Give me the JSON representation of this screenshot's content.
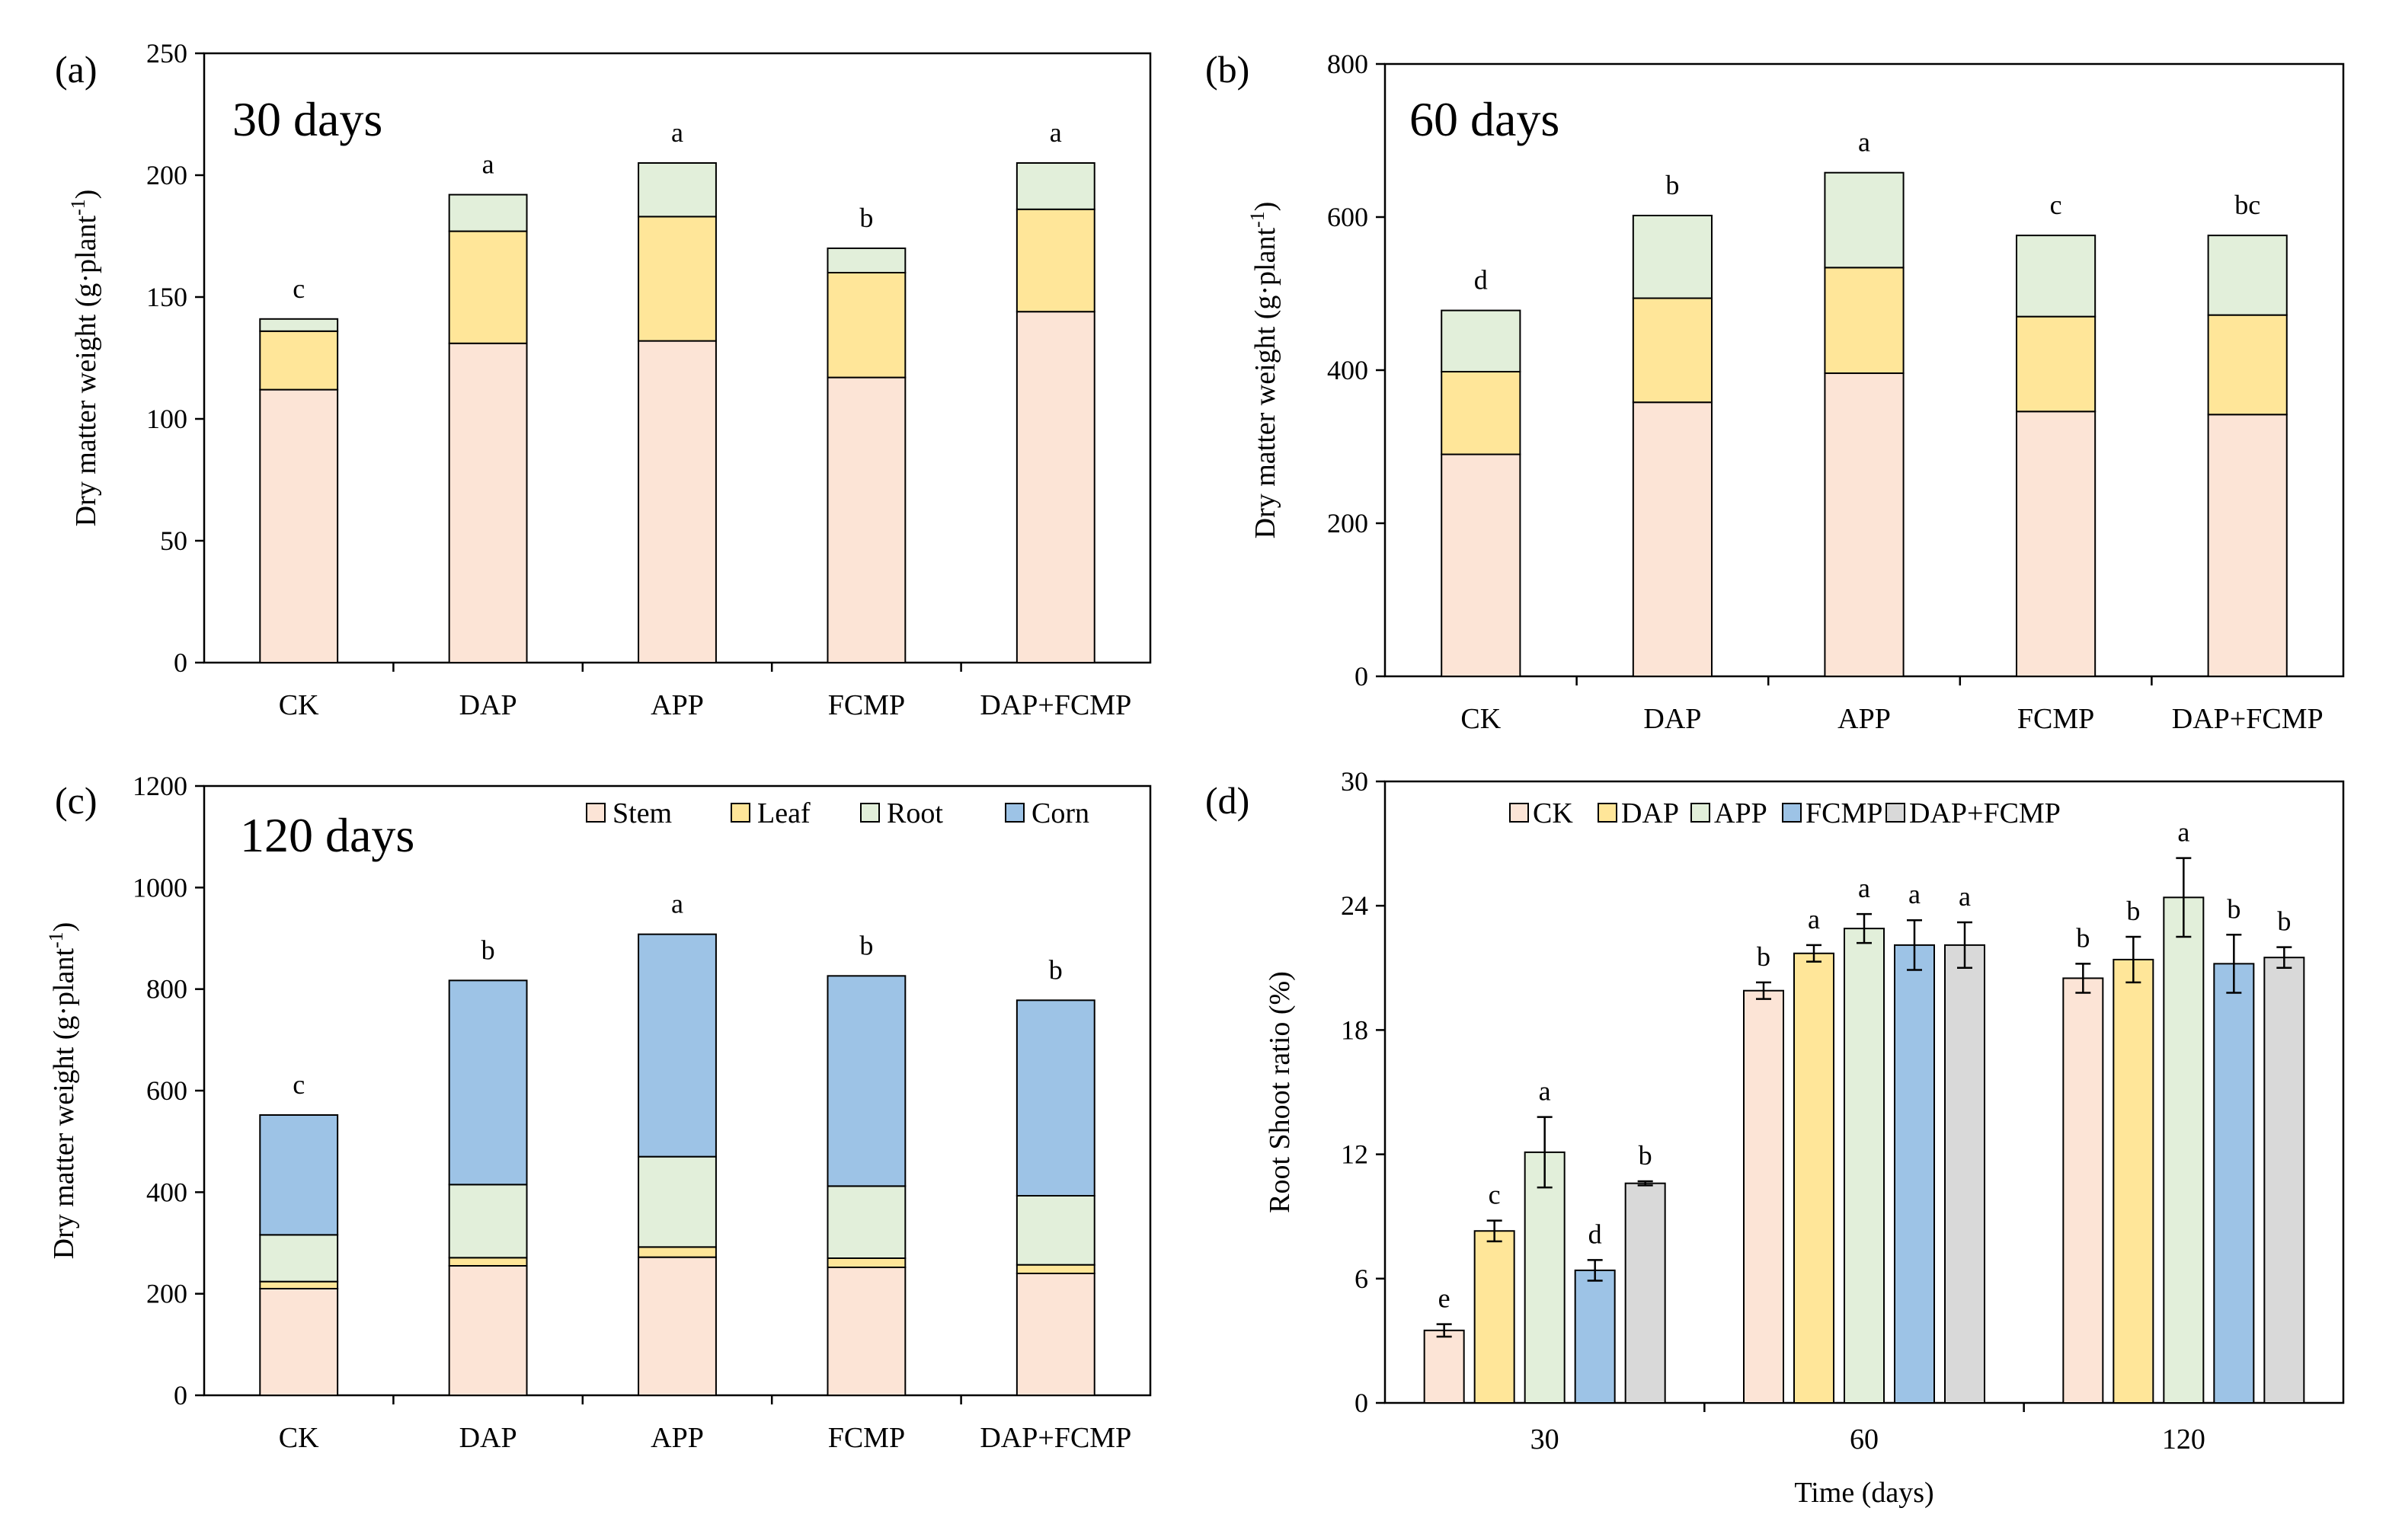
{
  "colors": {
    "stem": "#FCE4D6",
    "leaf": "#FFE699",
    "root": "#E2EFDA",
    "corn": "#9DC3E6",
    "ck": "#FCE4D6",
    "dap": "#FFE699",
    "app": "#E2EFDA",
    "fcmp": "#9DC3E6",
    "dapfcmp": "#D9D9D9"
  },
  "chart_data": [
    {
      "panel": "(a)",
      "type": "bar",
      "stacked": true,
      "title": "30 days",
      "ylabel": "Dry matter weight (g·plant",
      "ylabel_sup": "-1",
      "ylabel_close": ")",
      "ylim": [
        0,
        250
      ],
      "yticks": [
        0,
        50,
        100,
        150,
        200,
        250
      ],
      "categories": [
        "CK",
        "DAP",
        "APP",
        "FCMP",
        "DAP+FCMP"
      ],
      "series": [
        {
          "name": "Stem",
          "color_key": "stem",
          "values": [
            112,
            131,
            132,
            117,
            144
          ]
        },
        {
          "name": "Leaf",
          "color_key": "leaf",
          "values": [
            24,
            46,
            51,
            43,
            42
          ]
        },
        {
          "name": "Root",
          "color_key": "root",
          "values": [
            5,
            15,
            22,
            10,
            19
          ]
        }
      ],
      "letters": [
        "c",
        "a",
        "a",
        "b",
        "a"
      ]
    },
    {
      "panel": "(b)",
      "type": "bar",
      "stacked": true,
      "title": "60 days",
      "ylabel": "Dry matter weight (g·plant",
      "ylabel_sup": "-1",
      "ylabel_close": ")",
      "ylim": [
        0,
        800
      ],
      "yticks": [
        0,
        200,
        400,
        600,
        800
      ],
      "categories": [
        "CK",
        "DAP",
        "APP",
        "FCMP",
        "DAP+FCMP"
      ],
      "series": [
        {
          "name": "Stem",
          "color_key": "stem",
          "values": [
            290,
            358,
            396,
            346,
            342
          ]
        },
        {
          "name": "Leaf",
          "color_key": "leaf",
          "values": [
            108,
            136,
            138,
            124,
            130
          ]
        },
        {
          "name": "Root",
          "color_key": "root",
          "values": [
            80,
            108,
            124,
            106,
            104
          ]
        }
      ],
      "letters": [
        "d",
        "b",
        "a",
        "c",
        "bc"
      ]
    },
    {
      "panel": "(c)",
      "type": "bar",
      "stacked": true,
      "title": "120 days",
      "ylabel": "Dry matter weight (g·plant",
      "ylabel_sup": "-1",
      "ylabel_close": ")",
      "ylim": [
        0,
        1200
      ],
      "yticks": [
        0,
        200,
        400,
        600,
        800,
        1000,
        1200
      ],
      "categories": [
        "CK",
        "DAP",
        "APP",
        "FCMP",
        "DAP+FCMP"
      ],
      "series": [
        {
          "name": "Stem",
          "color_key": "stem",
          "values": [
            210,
            255,
            272,
            252,
            240
          ]
        },
        {
          "name": "Leaf",
          "color_key": "leaf",
          "values": [
            14,
            16,
            20,
            18,
            17
          ]
        },
        {
          "name": "Root",
          "color_key": "root",
          "values": [
            92,
            144,
            178,
            142,
            136
          ]
        },
        {
          "name": "Corn",
          "color_key": "corn",
          "values": [
            236,
            402,
            438,
            414,
            385
          ]
        }
      ],
      "letters": [
        "c",
        "b",
        "a",
        "b",
        "b"
      ],
      "legend": [
        "Stem",
        "Leaf",
        "Root",
        "Corn"
      ]
    },
    {
      "panel": "(d)",
      "type": "bar",
      "stacked": false,
      "xlabel": "Time (days)",
      "ylabel": "Root Shoot ratio (%)",
      "ylim": [
        0,
        30
      ],
      "yticks": [
        0,
        6,
        12,
        18,
        24,
        30
      ],
      "categories": [
        "30",
        "60",
        "120"
      ],
      "series": [
        {
          "name": "CK",
          "color_key": "ck",
          "values": [
            3.5,
            19.9,
            20.5
          ],
          "errors": [
            0.3,
            0.4,
            0.7
          ],
          "letters": [
            "e",
            "b",
            "b"
          ]
        },
        {
          "name": "DAP",
          "color_key": "dap",
          "values": [
            8.3,
            21.7,
            21.4
          ],
          "errors": [
            0.5,
            0.4,
            1.1
          ],
          "letters": [
            "c",
            "a",
            "b"
          ]
        },
        {
          "name": "APP",
          "color_key": "app",
          "values": [
            12.1,
            22.9,
            24.4
          ],
          "errors": [
            1.7,
            0.7,
            1.9
          ],
          "letters": [
            "a",
            "a",
            "a"
          ]
        },
        {
          "name": "FCMP",
          "color_key": "fcmp",
          "values": [
            6.4,
            22.1,
            21.2
          ],
          "errors": [
            0.5,
            1.2,
            1.4
          ],
          "letters": [
            "d",
            "a",
            "b"
          ]
        },
        {
          "name": "DAP+FCMP",
          "color_key": "dapfcmp",
          "values": [
            10.6,
            22.1,
            21.5
          ],
          "errors": [
            0.1,
            1.1,
            0.5
          ],
          "letters": [
            "b",
            "a",
            "b"
          ]
        }
      ],
      "legend": [
        "CK",
        "DAP",
        "APP",
        "FCMP",
        "DAP+FCMP"
      ]
    }
  ]
}
